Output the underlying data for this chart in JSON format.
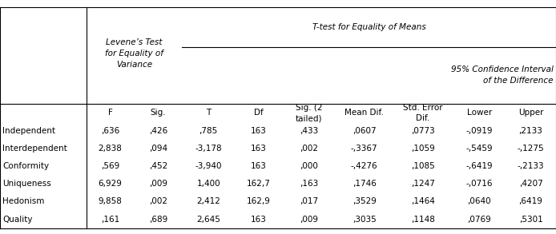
{
  "col_headers": [
    "F",
    "Sig.",
    "T",
    "Df",
    "Sig. (2\ntailed)",
    "Mean Dif.",
    "Std. Error\nDif.",
    "Lower",
    "Upper"
  ],
  "row_labels": [
    "Independent",
    "Interdependent",
    "Conformity",
    "Uniqueness",
    "Hedonism",
    "Quality"
  ],
  "data": [
    [
      ",636",
      ",426",
      ",785",
      "163",
      ",433",
      ",0607",
      ",0773",
      "-,0919",
      ",2133"
    ],
    [
      "2,838",
      ",094",
      "-3,178",
      "163",
      ",002",
      "-,3367",
      ",1059",
      "-,5459",
      "-,1275"
    ],
    [
      ",569",
      ",452",
      "-3,940",
      "163",
      ",000",
      "-,4276",
      ",1085",
      "-,6419",
      "-,2133"
    ],
    [
      "6,929",
      ",009",
      "1,400",
      "162,7",
      ",163",
      ",1746",
      ",1247",
      "-,0716",
      ",4207"
    ],
    [
      "9,858",
      ",002",
      "2,412",
      "162,9",
      ",017",
      ",3529",
      ",1464",
      ",0640",
      ",6419"
    ],
    [
      ",161",
      ",689",
      "2,645",
      "163",
      ",009",
      ",3035",
      ",1148",
      ",0769",
      ",5301"
    ]
  ],
  "levene_label": "Levene’s Test\nfor Equality of\nVariance",
  "ttest_label": "T-test for Equality of Means",
  "ci_label": "95% Confidence Interval\nof the Difference",
  "background_color": "#ffffff",
  "line_color": "#000000",
  "text_color": "#000000",
  "font_size": 7.5
}
